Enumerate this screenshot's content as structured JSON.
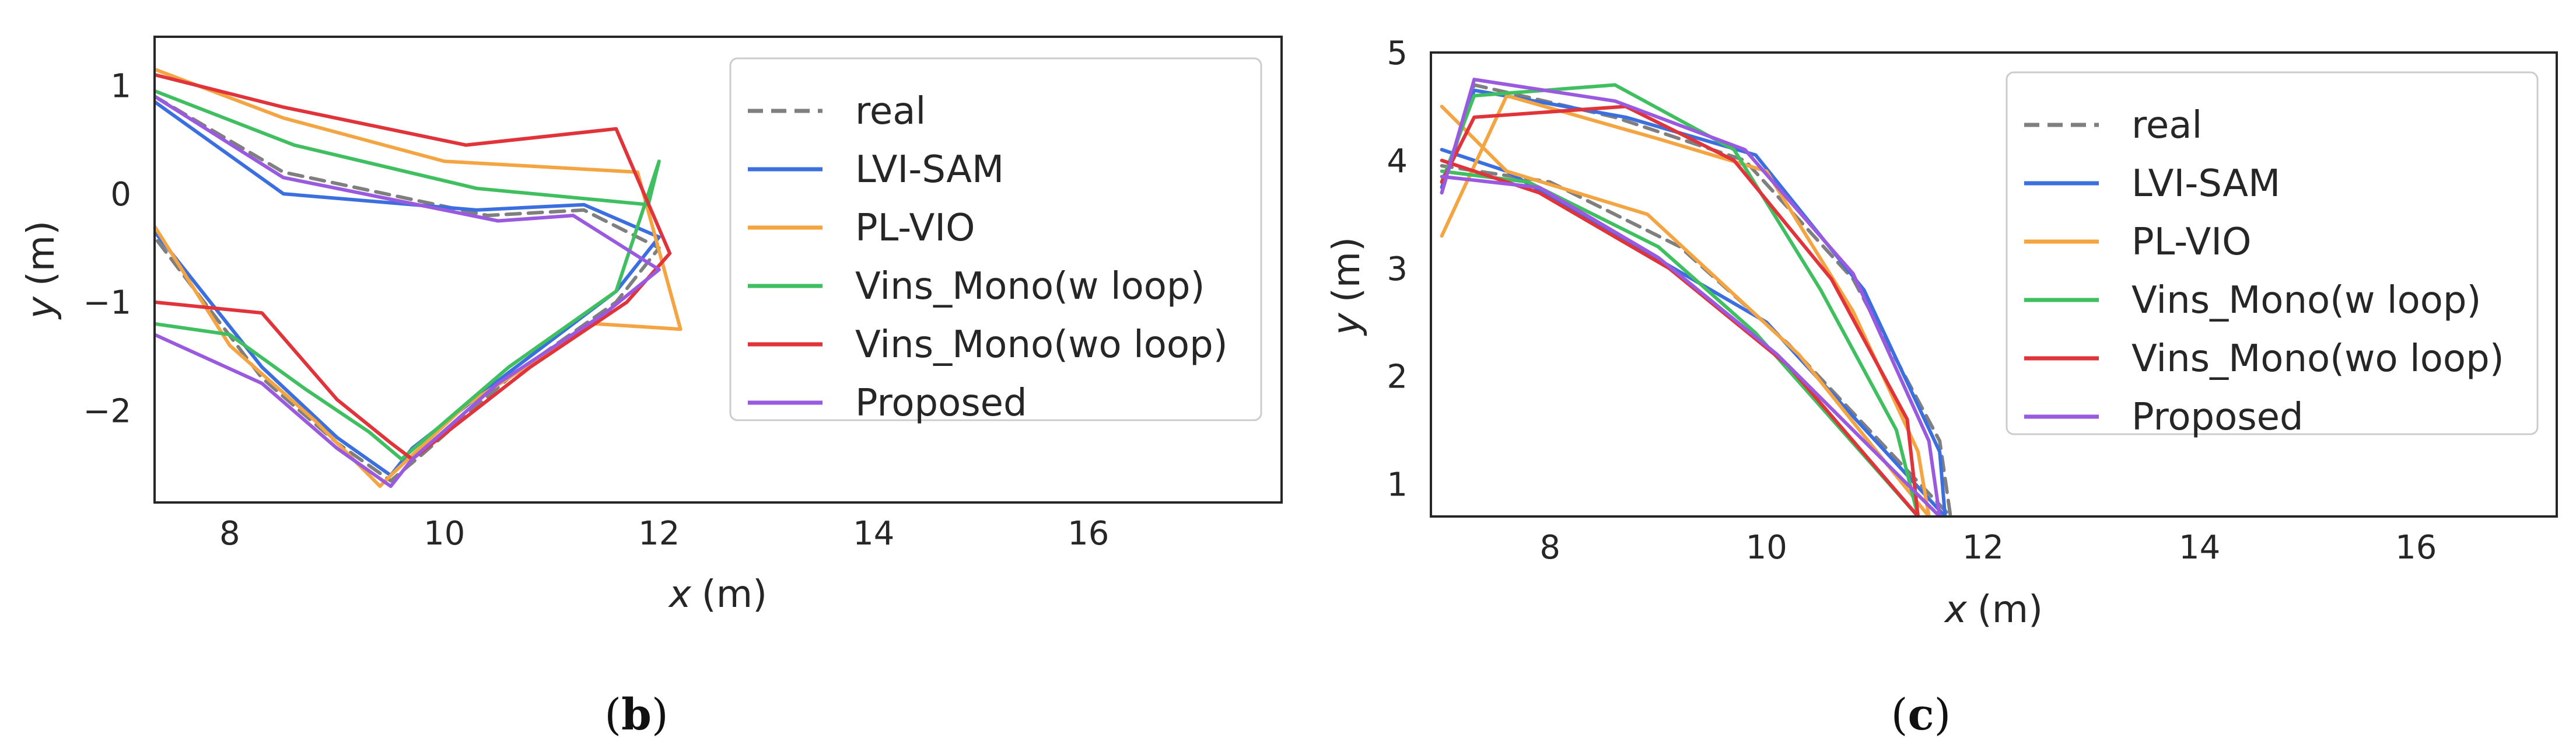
{
  "chart_data": [
    {
      "type": "line",
      "caption_letter": "b",
      "xlabel_var": "x",
      "xlabel_unit": "(m)",
      "ylabel_var": "y",
      "ylabel_unit": "(m)",
      "xlim": [
        7.3,
        17.8
      ],
      "ylim": [
        -2.85,
        1.45
      ],
      "xticks": [
        8,
        10,
        12,
        14,
        16
      ],
      "yticks": [
        1,
        0,
        -1,
        -2
      ],
      "xtick_labels": [
        "8",
        "10",
        "12",
        "14",
        "16"
      ],
      "ytick_labels": [
        "1",
        "0",
        "−1",
        "−2"
      ],
      "legend_position": "upper-right",
      "series": [
        {
          "name": "real",
          "color": "#7f7f7f",
          "dash": "24,14",
          "x": [
            7.3,
            8.5,
            10.4,
            11.3,
            12.0,
            11.6,
            10.6,
            9.8,
            9.5,
            9.0,
            8.3,
            7.3
          ],
          "y": [
            0.9,
            0.2,
            -0.2,
            -0.15,
            -0.5,
            -1.0,
            -1.7,
            -2.4,
            -2.65,
            -2.3,
            -1.7,
            -0.4
          ]
        },
        {
          "name": "LVI-SAM",
          "color": "#3b6fe0",
          "dash": "",
          "x": [
            7.3,
            8.5,
            10.3,
            11.3,
            12.0,
            11.6,
            10.6,
            9.7,
            9.5,
            9.0,
            8.3,
            7.3
          ],
          "y": [
            0.85,
            0.0,
            -0.15,
            -0.1,
            -0.4,
            -0.9,
            -1.65,
            -2.35,
            -2.6,
            -2.25,
            -1.6,
            -0.35
          ]
        },
        {
          "name": "PL-VIO",
          "color": "#f5a442",
          "dash": "",
          "x": [
            7.3,
            8.5,
            10.0,
            11.8,
            12.2,
            11.4,
            10.2,
            9.5,
            9.4,
            8.8,
            8.0,
            7.3
          ],
          "y": [
            1.15,
            0.7,
            0.3,
            0.2,
            -1.25,
            -1.2,
            -1.95,
            -2.6,
            -2.7,
            -2.1,
            -1.4,
            -0.3
          ]
        },
        {
          "name": "Vins_Mono(w loop)",
          "color": "#3fbf5f",
          "dash": "",
          "x": [
            7.3,
            8.6,
            10.3,
            11.9,
            12.0,
            11.6,
            10.6,
            9.6,
            9.3,
            8.7,
            8.0,
            7.3
          ],
          "y": [
            0.95,
            0.45,
            0.05,
            -0.1,
            0.3,
            -0.9,
            -1.6,
            -2.45,
            -2.2,
            -1.8,
            -1.3,
            -1.2
          ]
        },
        {
          "name": "Vins_Mono(wo loop)",
          "color": "#e0333a",
          "dash": "",
          "x": [
            7.3,
            8.5,
            10.2,
            11.6,
            12.1,
            11.7,
            10.8,
            9.7,
            9.5,
            9.0,
            8.3,
            7.3
          ],
          "y": [
            1.1,
            0.8,
            0.45,
            0.6,
            -0.55,
            -1.0,
            -1.6,
            -2.45,
            -2.3,
            -1.9,
            -1.1,
            -1.0
          ]
        },
        {
          "name": "Proposed",
          "color": "#9a5ae0",
          "dash": "",
          "x": [
            7.3,
            8.5,
            10.5,
            11.2,
            12.0,
            11.5,
            10.5,
            9.7,
            9.5,
            9.0,
            8.3,
            7.3
          ],
          "y": [
            0.9,
            0.15,
            -0.25,
            -0.2,
            -0.7,
            -1.1,
            -1.75,
            -2.45,
            -2.7,
            -2.35,
            -1.75,
            -1.3
          ]
        }
      ]
    },
    {
      "type": "line",
      "caption_letter": "c",
      "xlabel_var": "x",
      "xlabel_unit": "(m)",
      "ylabel_var": "y",
      "ylabel_unit": "(m)",
      "xlim": [
        6.9,
        17.3
      ],
      "ylim": [
        0.7,
        5.0
      ],
      "xticks": [
        8,
        10,
        12,
        14,
        16
      ],
      "yticks": [
        5,
        4,
        3,
        2,
        1
      ],
      "xtick_labels": [
        "8",
        "10",
        "12",
        "14",
        "16"
      ],
      "ytick_labels": [
        "5",
        "4",
        "3",
        "2",
        "1"
      ],
      "legend_position": "upper-right",
      "series": [
        {
          "name": "real",
          "color": "#7f7f7f",
          "dash": "24,14",
          "x": [
            7.0,
            7.3,
            8.6,
            9.8,
            10.8,
            11.6,
            11.7,
            10.2,
            9.2,
            8.0,
            7.0
          ],
          "y": [
            3.7,
            4.7,
            4.4,
            4.0,
            2.9,
            1.4,
            0.7,
            2.3,
            3.2,
            3.8,
            3.95
          ]
        },
        {
          "name": "LVI-SAM",
          "color": "#3b6fe0",
          "dash": "",
          "x": [
            7.0,
            7.3,
            8.7,
            9.9,
            10.9,
            11.6,
            11.65,
            10.0,
            8.8,
            7.6,
            7.0
          ],
          "y": [
            3.75,
            4.65,
            4.4,
            4.05,
            2.8,
            1.3,
            0.7,
            2.5,
            3.2,
            3.9,
            4.1
          ]
        },
        {
          "name": "PL-VIO",
          "color": "#f5a442",
          "dash": "",
          "x": [
            7.0,
            7.6,
            9.0,
            10.0,
            10.8,
            11.4,
            11.5,
            10.3,
            8.9,
            7.6,
            7.0
          ],
          "y": [
            3.3,
            4.6,
            4.2,
            3.9,
            2.6,
            1.3,
            0.7,
            2.2,
            3.5,
            3.9,
            4.5
          ]
        },
        {
          "name": "Vins_Mono(w loop)",
          "color": "#3fbf5f",
          "dash": "",
          "x": [
            7.0,
            7.3,
            8.6,
            9.7,
            10.5,
            11.2,
            11.4,
            9.9,
            9.0,
            7.8,
            7.0
          ],
          "y": [
            3.8,
            4.6,
            4.7,
            4.1,
            2.8,
            1.5,
            0.7,
            2.4,
            3.2,
            3.8,
            3.9
          ]
        },
        {
          "name": "Vins_Mono(wo loop)",
          "color": "#e0333a",
          "dash": "",
          "x": [
            7.0,
            7.3,
            8.7,
            9.7,
            10.6,
            11.3,
            11.4,
            10.2,
            9.1,
            7.9,
            7.0
          ],
          "y": [
            3.8,
            4.4,
            4.5,
            4.0,
            2.9,
            1.6,
            0.7,
            2.1,
            3.0,
            3.7,
            4.0
          ]
        },
        {
          "name": "Proposed",
          "color": "#9a5ae0",
          "dash": "",
          "x": [
            7.0,
            7.3,
            8.6,
            9.8,
            10.8,
            11.5,
            11.6,
            10.1,
            9.0,
            7.9,
            7.0
          ],
          "y": [
            3.7,
            4.75,
            4.55,
            4.1,
            2.95,
            1.4,
            0.7,
            2.2,
            3.1,
            3.75,
            3.85
          ]
        }
      ]
    }
  ]
}
